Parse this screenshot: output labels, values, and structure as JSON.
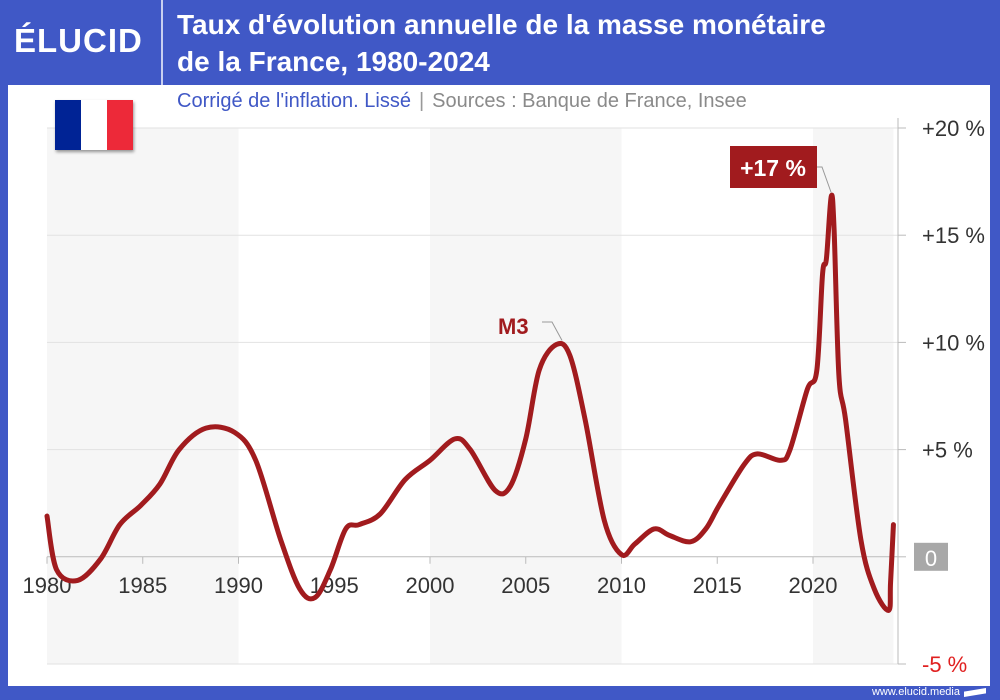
{
  "header": {
    "logo": "ÉLUCID",
    "title_line1": "Taux d'évolution annuelle de la masse monétaire",
    "title_line2": "de la France, 1980-2024"
  },
  "subtitle": {
    "note": "Corrigé de l'inflation. Lissé",
    "separator": "|",
    "sources": "Sources : Banque de France, Insee"
  },
  "footer": {
    "url": "www.elucid.media"
  },
  "colors": {
    "brand_blue": "#4058c6",
    "series": "#a11b1e",
    "negative_label": "#e02020",
    "zero_badge": "#a8a8a8"
  },
  "flag_colors": [
    "#002395",
    "#ffffff",
    "#ed2939"
  ],
  "chart_data": {
    "type": "line",
    "title": "Taux d'évolution annuelle de la masse monétaire de la France, 1980-2024",
    "xlim": [
      1980,
      2024.2
    ],
    "ylim": [
      -5,
      20
    ],
    "x_ticks": [
      {
        "v": 1980,
        "label": "1980"
      },
      {
        "v": 1985,
        "label": "1985"
      },
      {
        "v": 1990,
        "label": "1990"
      },
      {
        "v": 1995,
        "label": "1995"
      },
      {
        "v": 2000,
        "label": "2000"
      },
      {
        "v": 2005,
        "label": "2005"
      },
      {
        "v": 2010,
        "label": "2010"
      },
      {
        "v": 2015,
        "label": "2015"
      },
      {
        "v": 2020,
        "label": "2020"
      }
    ],
    "y_ticks": [
      {
        "v": 20,
        "label": "+20 %"
      },
      {
        "v": 15,
        "label": "+15 %"
      },
      {
        "v": 10,
        "label": "+10 %"
      },
      {
        "v": 5,
        "label": "+5 %"
      },
      {
        "v": 0,
        "label": "0"
      },
      {
        "v": -5,
        "label": "-5 %"
      }
    ],
    "grid": true,
    "shaded_periods": [
      [
        1980,
        1990
      ],
      [
        2000,
        2010
      ],
      [
        2020,
        2024.2
      ]
    ],
    "series": [
      {
        "name": "M3",
        "x": [
          1980.0,
          1980.5,
          1981.6,
          1982.8,
          1983.8,
          1984.9,
          1985.9,
          1986.9,
          1988.3,
          1989.8,
          1990.9,
          1992.2,
          1993.2,
          1994.0,
          1994.8,
          1995.6,
          1996.3,
          1997.4,
          1998.7,
          2000.0,
          2001.3,
          2002.1,
          2003.4,
          2004.2,
          2005.0,
          2005.7,
          2006.6,
          2007.3,
          2008.1,
          2009.1,
          2010.0,
          2010.7,
          2011.7,
          2012.5,
          2013.6,
          2014.4,
          2015.1,
          2016.4,
          2017.1,
          2018.3,
          2018.8,
          2019.7,
          2020.2,
          2020.5,
          2020.7,
          2020.95,
          2021.1,
          2021.35,
          2021.7,
          2022.5,
          2023.2,
          2023.95,
          2024.05,
          2024.2
        ],
        "y": [
          1.9,
          -0.6,
          -1.1,
          -0.1,
          1.5,
          2.4,
          3.4,
          5.0,
          6.0,
          5.8,
          4.5,
          0.8,
          -1.5,
          -1.9,
          -0.6,
          1.3,
          1.5,
          2.0,
          3.6,
          4.5,
          5.5,
          5.0,
          3.1,
          3.3,
          5.5,
          8.7,
          9.9,
          9.4,
          6.4,
          1.7,
          0.1,
          0.6,
          1.3,
          1.0,
          0.7,
          1.3,
          2.4,
          4.3,
          4.8,
          4.5,
          5.0,
          7.8,
          8.7,
          13.2,
          13.9,
          16.8,
          15.3,
          8.5,
          6.4,
          0.8,
          -1.5,
          -2.5,
          -1.2,
          1.5
        ]
      }
    ],
    "annotations": [
      {
        "text": "M3",
        "x": 2007,
        "y": 9.9
      },
      {
        "text": "+17 %",
        "x": 2020.95,
        "y": 16.8
      }
    ]
  }
}
